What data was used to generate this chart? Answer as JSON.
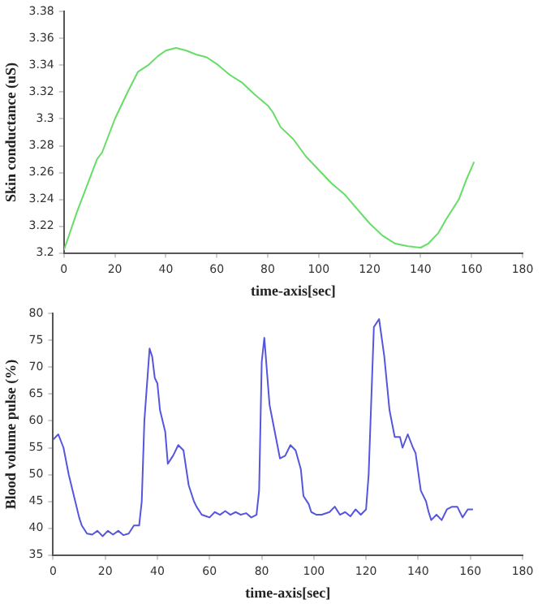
{
  "chart_data": [
    {
      "type": "line",
      "xlabel": "time-axis[sec]",
      "ylabel": "Skin conductance (uS)",
      "xlim": [
        0,
        180
      ],
      "xticks": [
        0,
        20,
        40,
        60,
        80,
        100,
        120,
        140,
        160,
        180
      ],
      "ylim": [
        3.2,
        3.38
      ],
      "yticks": [
        3.2,
        3.22,
        3.24,
        3.26,
        3.28,
        3.3,
        3.32,
        3.34,
        3.36,
        3.38
      ],
      "grid": false,
      "legend": false,
      "marker": "none",
      "line_style": "solid",
      "series": [
        {
          "color": "#66dd66",
          "x": [
            0,
            5,
            10,
            13,
            15,
            20,
            25,
            29,
            33,
            37,
            40,
            44,
            48,
            52,
            56,
            60,
            65,
            70,
            75,
            80,
            82,
            85,
            90,
            95,
            100,
            105,
            110,
            115,
            120,
            125,
            130,
            135,
            140,
            143,
            147,
            150,
            155,
            158,
            161
          ],
          "values": [
            3.202,
            3.23,
            3.255,
            3.27,
            3.275,
            3.3,
            3.32,
            3.335,
            3.34,
            3.347,
            3.351,
            3.353,
            3.351,
            3.348,
            3.346,
            3.341,
            3.333,
            3.327,
            3.318,
            3.31,
            3.305,
            3.294,
            3.285,
            3.272,
            3.262,
            3.252,
            3.244,
            3.233,
            3.222,
            3.213,
            3.207,
            3.205,
            3.204,
            3.207,
            3.215,
            3.225,
            3.24,
            3.255,
            3.268
          ]
        }
      ]
    },
    {
      "type": "line",
      "xlabel": "time-axis[sec]",
      "ylabel": "Blood volume pulse (%)",
      "xlim": [
        0,
        180
      ],
      "xticks": [
        0,
        20,
        40,
        60,
        80,
        100,
        120,
        140,
        160,
        180
      ],
      "ylim": [
        35,
        80
      ],
      "yticks": [
        35,
        40,
        45,
        50,
        55,
        60,
        65,
        70,
        75,
        80
      ],
      "grid": false,
      "legend": false,
      "marker": "none",
      "line_style": "solid",
      "series": [
        {
          "color": "#5555dd",
          "x": [
            0,
            2,
            4,
            6,
            8,
            10,
            11,
            13,
            15,
            17,
            19,
            21,
            23,
            25,
            27,
            29,
            31,
            33,
            34,
            35,
            37,
            38,
            39,
            40,
            41,
            43,
            44,
            46,
            48,
            50,
            52,
            54,
            55,
            57,
            60,
            62,
            64,
            66,
            68,
            70,
            72,
            74,
            76,
            78,
            79,
            80,
            81,
            83,
            85,
            87,
            89,
            91,
            93,
            95,
            96,
            98,
            99,
            101,
            103,
            106,
            108,
            110,
            112,
            114,
            116,
            118,
            120,
            121,
            123,
            125,
            127,
            129,
            131,
            133,
            134,
            136,
            138,
            139,
            141,
            143,
            144,
            145,
            147,
            149,
            151,
            153,
            155,
            157,
            159,
            161
          ],
          "values": [
            56.5,
            57.5,
            55,
            50,
            46,
            42,
            40.5,
            39,
            38.8,
            39.5,
            38.5,
            39.5,
            38.8,
            39.5,
            38.7,
            39,
            40.5,
            40.5,
            45,
            60,
            73.5,
            72,
            68,
            67,
            62,
            58,
            52,
            53.5,
            55.5,
            54.5,
            48,
            45,
            44,
            42.5,
            42,
            43,
            42.5,
            43.2,
            42.5,
            43,
            42.5,
            42.8,
            42,
            42.5,
            47,
            71,
            75.5,
            63,
            58,
            53,
            53.5,
            55.5,
            54.5,
            51,
            46,
            44.5,
            43,
            42.5,
            42.5,
            43,
            44,
            42.5,
            43,
            42.2,
            43.5,
            42.5,
            43.5,
            50,
            77.5,
            79,
            72,
            62,
            57,
            57,
            55,
            57.5,
            55,
            54,
            47,
            45,
            43,
            41.5,
            42.5,
            41.5,
            43.5,
            44,
            44,
            42,
            43.5,
            43.5
          ]
        }
      ]
    }
  ]
}
